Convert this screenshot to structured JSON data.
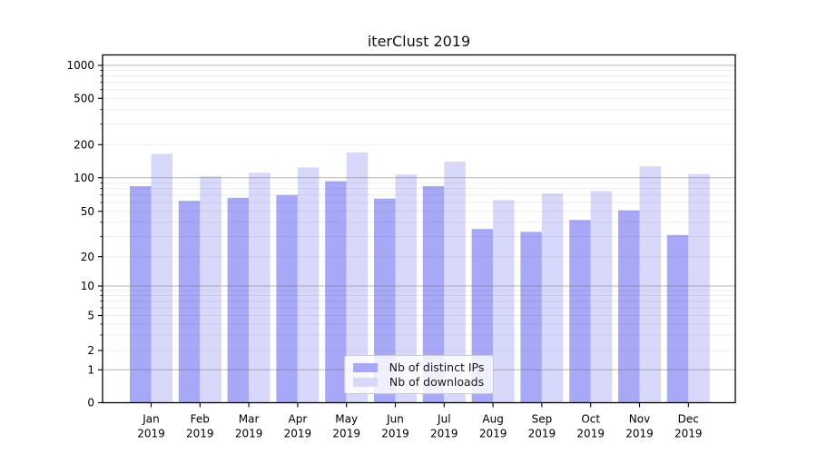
{
  "chart_data": {
    "type": "bar",
    "title": "iterClust 2019",
    "categories": [
      "Jan 2019",
      "Feb 2019",
      "Mar 2019",
      "Apr 2019",
      "May 2019",
      "Jun 2019",
      "Jul 2019",
      "Aug 2019",
      "Sep 2019",
      "Oct 2019",
      "Nov 2019",
      "Dec 2019"
    ],
    "series": [
      {
        "name": "Nb of distinct IPs",
        "color": "#a8a8f8",
        "values": [
          84,
          62,
          66,
          70,
          93,
          65,
          84,
          35,
          33,
          42,
          51,
          31
        ]
      },
      {
        "name": "Nb of downloads",
        "color": "#d8d8fa",
        "values": [
          165,
          103,
          111,
          124,
          170,
          107,
          140,
          63,
          72,
          76,
          127,
          108
        ]
      }
    ],
    "xlabel": "",
    "ylabel": "",
    "yscale": "symlog",
    "y_ticks": [
      0,
      1,
      2,
      5,
      10,
      20,
      50,
      100,
      200,
      500,
      1000
    ],
    "ylim": [
      0,
      1150
    ],
    "grid": "horizontal major and minor",
    "legend": {
      "position": "lower center"
    }
  }
}
